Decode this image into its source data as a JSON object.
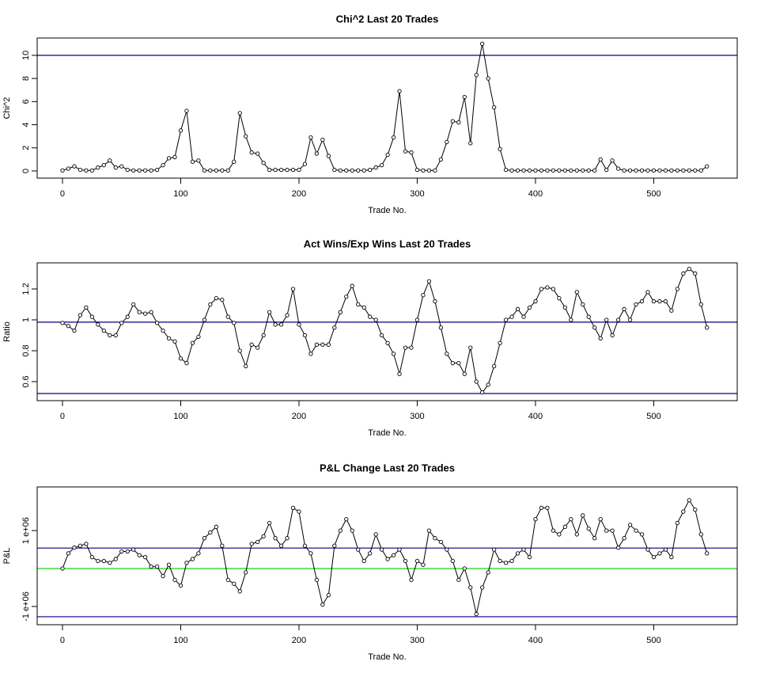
{
  "chart_data": [
    {
      "type": "line",
      "title": "Chi^2 Last 20 Trades",
      "xlabel": "Trade No.",
      "ylabel": "Chi^2",
      "color": "#000000",
      "x": [
        0,
        5,
        10,
        15,
        20,
        25,
        30,
        35,
        40,
        45,
        50,
        55,
        60,
        65,
        70,
        75,
        80,
        85,
        90,
        95,
        100,
        105,
        110,
        115,
        120,
        125,
        130,
        135,
        140,
        145,
        150,
        155,
        160,
        165,
        170,
        175,
        180,
        185,
        190,
        195,
        200,
        205,
        210,
        215,
        220,
        225,
        230,
        235,
        240,
        245,
        250,
        255,
        260,
        265,
        270,
        275,
        280,
        285,
        290,
        295,
        300,
        305,
        310,
        315,
        320,
        325,
        330,
        335,
        340,
        345,
        350,
        355,
        360,
        365,
        370,
        375,
        380,
        385,
        390,
        395,
        400,
        405,
        410,
        415,
        420,
        425,
        430,
        435,
        440,
        445,
        450,
        455,
        460,
        465,
        470,
        475,
        480,
        485,
        490,
        495,
        500,
        505,
        510,
        515,
        520,
        525,
        530,
        535,
        540,
        545
      ],
      "values": [
        0.05,
        0.2,
        0.4,
        0.1,
        0.05,
        0.05,
        0.3,
        0.5,
        0.9,
        0.3,
        0.4,
        0.1,
        0.05,
        0.05,
        0.05,
        0.05,
        0.1,
        0.5,
        1.1,
        1.2,
        3.5,
        5.2,
        0.8,
        0.9,
        0.05,
        0.05,
        0.05,
        0.05,
        0.05,
        0.8,
        5,
        3,
        1.6,
        1.5,
        0.7,
        0.1,
        0.1,
        0.1,
        0.1,
        0.1,
        0.1,
        0.6,
        2.9,
        1.5,
        2.7,
        1.3,
        0.1,
        0.05,
        0.05,
        0.05,
        0.05,
        0.05,
        0.1,
        0.3,
        0.5,
        1.4,
        2.9,
        6.9,
        1.7,
        1.6,
        0.1,
        0.05,
        0.05,
        0.05,
        1,
        2.5,
        4.3,
        4.2,
        6.4,
        2.4,
        8.3,
        11,
        8,
        5.5,
        1.9,
        0.1,
        0.05,
        0.05,
        0.05,
        0.05,
        0.05,
        0.05,
        0.05,
        0.05,
        0.05,
        0.05,
        0.05,
        0.05,
        0.05,
        0.05,
        0.05,
        1,
        0.1,
        0.9,
        0.2,
        0.05,
        0.05,
        0.05,
        0.05,
        0.05,
        0.05,
        0.05,
        0.05,
        0.05,
        0.05,
        0.05,
        0.05,
        0.05,
        0.05,
        0.4
      ],
      "xlim": [
        -21.4,
        570.6
      ],
      "xticks": [
        0,
        100,
        200,
        300,
        400,
        500
      ],
      "ylim": [
        -0.62,
        11.5
      ],
      "yticks": [
        0,
        2,
        4,
        6,
        8,
        10
      ],
      "hlines": [
        {
          "value": 10,
          "color": "#000080"
        }
      ]
    },
    {
      "type": "line",
      "title": "Act Wins/Exp Wins Last 20 Trades",
      "xlabel": "Trade No.",
      "ylabel": "Ratio",
      "color": "#000000",
      "x": [
        0,
        5,
        10,
        15,
        20,
        25,
        30,
        35,
        40,
        45,
        50,
        55,
        60,
        65,
        70,
        75,
        80,
        85,
        90,
        95,
        100,
        105,
        110,
        115,
        120,
        125,
        130,
        135,
        140,
        145,
        150,
        155,
        160,
        165,
        170,
        175,
        180,
        185,
        190,
        195,
        200,
        205,
        210,
        215,
        220,
        225,
        230,
        235,
        240,
        245,
        250,
        255,
        260,
        265,
        270,
        275,
        280,
        285,
        290,
        295,
        300,
        305,
        310,
        315,
        320,
        325,
        330,
        335,
        340,
        345,
        350,
        355,
        360,
        365,
        370,
        375,
        380,
        385,
        390,
        395,
        400,
        405,
        410,
        415,
        420,
        425,
        430,
        435,
        440,
        445,
        450,
        455,
        460,
        465,
        470,
        475,
        480,
        485,
        490,
        495,
        500,
        505,
        510,
        515,
        520,
        525,
        530,
        535,
        540,
        545
      ],
      "values": [
        0.98,
        0.96,
        0.93,
        1.03,
        1.08,
        1.02,
        0.97,
        0.93,
        0.9,
        0.9,
        0.98,
        1.02,
        1.1,
        1.05,
        1.04,
        1.05,
        0.98,
        0.93,
        0.88,
        0.86,
        0.75,
        0.72,
        0.85,
        0.89,
        1.0,
        1.1,
        1.14,
        1.13,
        1.02,
        0.98,
        0.8,
        0.7,
        0.84,
        0.82,
        0.9,
        1.05,
        0.97,
        0.97,
        1.03,
        1.2,
        0.97,
        0.9,
        0.78,
        0.84,
        0.84,
        0.84,
        0.95,
        1.05,
        1.15,
        1.22,
        1.1,
        1.08,
        1.02,
        1.0,
        0.9,
        0.85,
        0.78,
        0.65,
        0.82,
        0.82,
        1.0,
        1.16,
        1.25,
        1.12,
        0.95,
        0.78,
        0.72,
        0.72,
        0.65,
        0.82,
        0.6,
        0.53,
        0.58,
        0.7,
        0.85,
        1.0,
        1.02,
        1.07,
        1.02,
        1.08,
        1.12,
        1.2,
        1.21,
        1.2,
        1.14,
        1.08,
        1.0,
        1.18,
        1.1,
        1.02,
        0.95,
        0.88,
        1.0,
        0.9,
        1.0,
        1.07,
        1.0,
        1.1,
        1.12,
        1.18,
        1.12,
        1.12,
        1.12,
        1.06,
        1.2,
        1.3,
        1.33,
        1.3,
        1.1,
        0.95
      ],
      "xlim": [
        -21.4,
        570.6
      ],
      "xticks": [
        0,
        100,
        200,
        300,
        400,
        500
      ],
      "ylim": [
        0.477,
        1.369
      ],
      "yticks": [
        0.6,
        0.8,
        1.0,
        1.2
      ],
      "hlines": [
        {
          "value": 0.985,
          "color": "#000080"
        },
        {
          "value": 0.523,
          "color": "#000080"
        }
      ]
    },
    {
      "type": "line",
      "title": "P&L Change Last 20 Trades",
      "xlabel": "Trade No.",
      "ylabel": "P&L",
      "color": "#000000",
      "x": [
        0,
        5,
        10,
        15,
        20,
        25,
        30,
        35,
        40,
        45,
        50,
        55,
        60,
        65,
        70,
        75,
        80,
        85,
        90,
        95,
        100,
        105,
        110,
        115,
        120,
        125,
        130,
        135,
        140,
        145,
        150,
        155,
        160,
        165,
        170,
        175,
        180,
        185,
        190,
        195,
        200,
        205,
        210,
        215,
        220,
        225,
        230,
        235,
        240,
        245,
        250,
        255,
        260,
        265,
        270,
        275,
        280,
        285,
        290,
        295,
        300,
        305,
        310,
        315,
        320,
        325,
        330,
        335,
        340,
        345,
        350,
        355,
        360,
        365,
        370,
        375,
        380,
        385,
        390,
        395,
        400,
        405,
        410,
        415,
        420,
        425,
        430,
        435,
        440,
        445,
        450,
        455,
        460,
        465,
        470,
        475,
        480,
        485,
        490,
        495,
        500,
        505,
        510,
        515,
        520,
        525,
        530,
        535,
        540,
        545
      ],
      "values": [
        0,
        400000,
        550000,
        600000,
        650000,
        300000,
        200000,
        200000,
        150000,
        250000,
        450000,
        450000,
        500000,
        350000,
        300000,
        50000,
        50000,
        -200000,
        100000,
        -300000,
        -450000,
        150000,
        250000,
        400000,
        800000,
        950000,
        1100000,
        600000,
        -300000,
        -400000,
        -600000,
        -100000,
        650000,
        700000,
        850000,
        1200000,
        800000,
        600000,
        800000,
        1600000,
        1500000,
        600000,
        400000,
        -300000,
        -950000,
        -700000,
        600000,
        1000000,
        1300000,
        1000000,
        500000,
        200000,
        400000,
        900000,
        500000,
        250000,
        350000,
        500000,
        200000,
        -300000,
        200000,
        100000,
        1000000,
        800000,
        700000,
        500000,
        200000,
        -300000,
        0,
        -500000,
        -1200000,
        -500000,
        -100000,
        500000,
        200000,
        150000,
        200000,
        400000,
        500000,
        300000,
        1300000,
        1600000,
        1600000,
        1000000,
        900000,
        1100000,
        1300000,
        900000,
        1400000,
        1050000,
        800000,
        1300000,
        1000000,
        1000000,
        550000,
        800000,
        1150000,
        1000000,
        900000,
        500000,
        300000,
        400000,
        500000,
        300000,
        1200000,
        1500000,
        1800000,
        1550000,
        900000,
        400000
      ],
      "xlim": [
        -21.4,
        570.6
      ],
      "xticks": [
        0,
        100,
        200,
        300,
        400,
        500
      ],
      "ylim": [
        -1480000,
        2150000
      ],
      "yticks": [
        {
          "value": -1000000,
          "label": "-1 e+06"
        },
        {
          "value": 1000000,
          "label": "1 e+06"
        }
      ],
      "hlines": [
        {
          "value": 540000,
          "color": "#000080"
        },
        {
          "value": 0,
          "color": "#00cc00"
        },
        {
          "value": -1270000,
          "color": "#000080"
        }
      ]
    }
  ]
}
